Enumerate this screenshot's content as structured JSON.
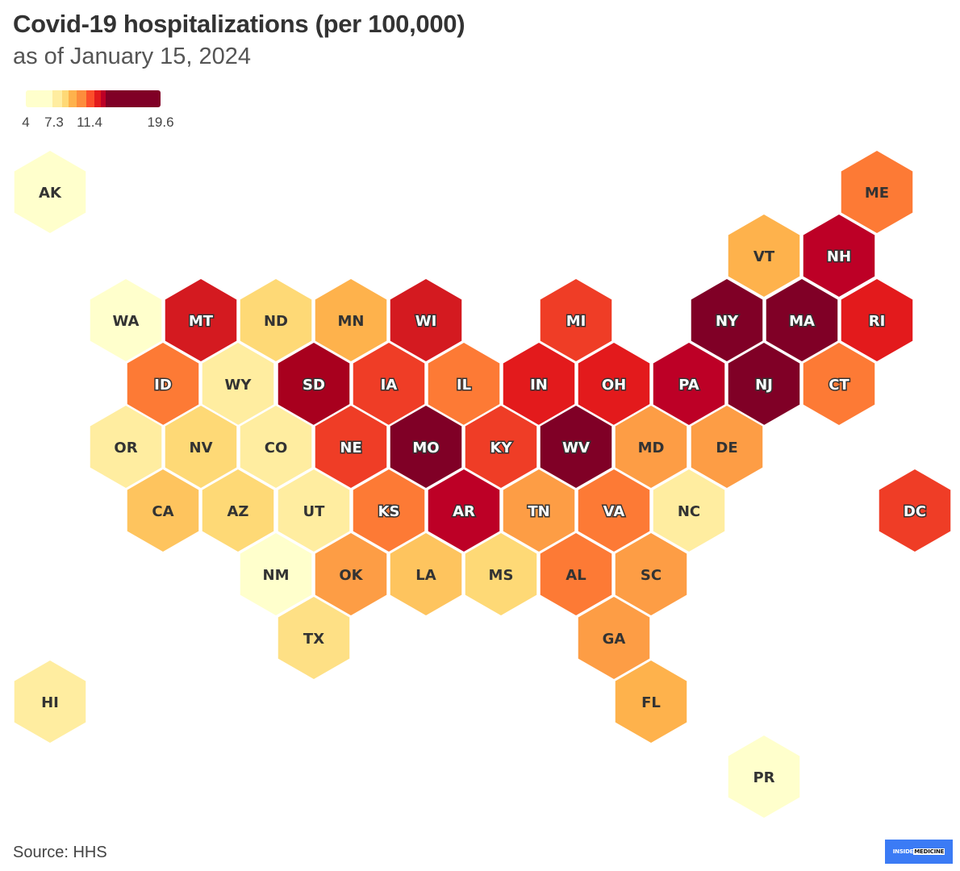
{
  "header": {
    "title": "Covid-19 hospitalizations (per 100,000)",
    "subtitle": "as of January 15, 2024"
  },
  "legend": {
    "ticks": [
      {
        "label": "4",
        "value": 4
      },
      {
        "label": "7.3",
        "value": 7.3
      },
      {
        "label": "11.4",
        "value": 11.4
      },
      {
        "label": "19.6",
        "value": 19.6
      }
    ],
    "colors": [
      "#ffffcc",
      "#ffeda0",
      "#fed976",
      "#feb24c",
      "#fd8d3c",
      "#fc4e2a",
      "#e31a1c",
      "#bd0026",
      "#800026"
    ]
  },
  "map": {
    "states": [
      {
        "abbr": "AK",
        "color": "#ffffcc",
        "light": false
      },
      {
        "abbr": "ME",
        "color": "#fd7a35",
        "light": false
      },
      {
        "abbr": "VT",
        "color": "#feb24c",
        "light": false
      },
      {
        "abbr": "NH",
        "color": "#bd0026",
        "light": true
      },
      {
        "abbr": "WA",
        "color": "#ffffcc",
        "light": false
      },
      {
        "abbr": "MT",
        "color": "#d41a20",
        "light": true
      },
      {
        "abbr": "ND",
        "color": "#fed976",
        "light": false
      },
      {
        "abbr": "MN",
        "color": "#feb24c",
        "light": false
      },
      {
        "abbr": "WI",
        "color": "#d41a20",
        "light": true
      },
      {
        "abbr": "MI",
        "color": "#ef3d26",
        "light": true
      },
      {
        "abbr": "NY",
        "color": "#800026",
        "light": true
      },
      {
        "abbr": "MA",
        "color": "#800026",
        "light": true
      },
      {
        "abbr": "RI",
        "color": "#e31a1c",
        "light": true
      },
      {
        "abbr": "ID",
        "color": "#fd7a35",
        "light": true
      },
      {
        "abbr": "WY",
        "color": "#ffeda0",
        "light": false
      },
      {
        "abbr": "SD",
        "color": "#a8001e",
        "light": true
      },
      {
        "abbr": "IA",
        "color": "#ef3d26",
        "light": true
      },
      {
        "abbr": "IL",
        "color": "#fd7a35",
        "light": true
      },
      {
        "abbr": "IN",
        "color": "#e31a1c",
        "light": true
      },
      {
        "abbr": "OH",
        "color": "#e31a1c",
        "light": true
      },
      {
        "abbr": "PA",
        "color": "#bd0026",
        "light": true
      },
      {
        "abbr": "NJ",
        "color": "#800026",
        "light": true
      },
      {
        "abbr": "CT",
        "color": "#fd7a35",
        "light": true
      },
      {
        "abbr": "OR",
        "color": "#ffeda0",
        "light": false
      },
      {
        "abbr": "NV",
        "color": "#fed976",
        "light": false
      },
      {
        "abbr": "CO",
        "color": "#ffeda0",
        "light": false
      },
      {
        "abbr": "NE",
        "color": "#ef3d26",
        "light": true
      },
      {
        "abbr": "MO",
        "color": "#800026",
        "light": true
      },
      {
        "abbr": "KY",
        "color": "#ef3d26",
        "light": true
      },
      {
        "abbr": "WV",
        "color": "#800026",
        "light": true
      },
      {
        "abbr": "MD",
        "color": "#fd9d45",
        "light": false
      },
      {
        "abbr": "DE",
        "color": "#fd9d45",
        "light": false
      },
      {
        "abbr": "CA",
        "color": "#fec45e",
        "light": false
      },
      {
        "abbr": "AZ",
        "color": "#fed976",
        "light": false
      },
      {
        "abbr": "UT",
        "color": "#ffeda0",
        "light": false
      },
      {
        "abbr": "KS",
        "color": "#fd7a35",
        "light": true
      },
      {
        "abbr": "AR",
        "color": "#bd0026",
        "light": true
      },
      {
        "abbr": "TN",
        "color": "#fd9d45",
        "light": true
      },
      {
        "abbr": "VA",
        "color": "#fd7a35",
        "light": true
      },
      {
        "abbr": "NC",
        "color": "#ffeda0",
        "light": false
      },
      {
        "abbr": "DC",
        "color": "#ef3d26",
        "light": true
      },
      {
        "abbr": "NM",
        "color": "#ffffcc",
        "light": false
      },
      {
        "abbr": "OK",
        "color": "#fd9d45",
        "light": false
      },
      {
        "abbr": "LA",
        "color": "#fec45e",
        "light": false
      },
      {
        "abbr": "MS",
        "color": "#fed976",
        "light": false
      },
      {
        "abbr": "AL",
        "color": "#fd7a35",
        "light": false
      },
      {
        "abbr": "SC",
        "color": "#fd9d45",
        "light": false
      },
      {
        "abbr": "TX",
        "color": "#fee085",
        "light": false
      },
      {
        "abbr": "GA",
        "color": "#fd9d45",
        "light": false
      },
      {
        "abbr": "HI",
        "color": "#ffeda0",
        "light": false
      },
      {
        "abbr": "FL",
        "color": "#feb24c",
        "light": false
      },
      {
        "abbr": "PR",
        "color": "#ffffcc",
        "light": false
      }
    ]
  },
  "footer": {
    "source": "Source: HHS",
    "logo_left": "INSIDE",
    "logo_right": "MEDICINE"
  }
}
